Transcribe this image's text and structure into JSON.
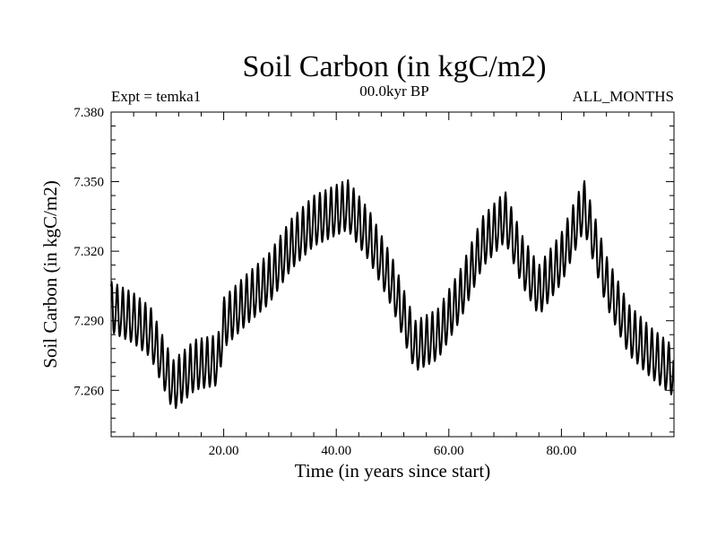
{
  "chart_data": {
    "type": "line",
    "title": "Soil Carbon (in kgC/m2)",
    "subtitle_left": "Expt = temka1",
    "subtitle_center": "00.0kyr BP",
    "subtitle_right": "ALL_MONTHS",
    "xlabel": "Time (in years since start)",
    "ylabel": "Soil Carbon (in kgC/m2)",
    "xlim": [
      0,
      100
    ],
    "ylim": [
      7.24,
      7.38
    ],
    "x_major_ticks": [
      20,
      40,
      60,
      80
    ],
    "x_tick_labels": [
      "20.00",
      "40.00",
      "60.00",
      "80.00"
    ],
    "x_minor_step": 4,
    "y_major_ticks": [
      7.26,
      7.29,
      7.32,
      7.35,
      7.38
    ],
    "y_tick_labels": [
      "7.260",
      "7.290",
      "7.320",
      "7.350",
      "7.380"
    ],
    "y_minor_step": 0.006,
    "line_color": "#000000",
    "seasonal_cycle_per_year": true,
    "trend_points": {
      "x": [
        0,
        4,
        7,
        11,
        15,
        19,
        20,
        24,
        28,
        32,
        36,
        42,
        46,
        50,
        54,
        58,
        62,
        66,
        70,
        73,
        76,
        80,
        84,
        88,
        92,
        96,
        99.5
      ],
      "y": [
        7.295,
        7.29,
        7.284,
        7.261,
        7.27,
        7.272,
        7.288,
        7.298,
        7.307,
        7.322,
        7.332,
        7.339,
        7.325,
        7.305,
        7.278,
        7.283,
        7.3,
        7.323,
        7.334,
        7.315,
        7.302,
        7.316,
        7.339,
        7.306,
        7.285,
        7.275,
        7.268
      ]
    },
    "series": [
      {
        "name": "Soil Carbon",
        "description": "monthly values with seasonal oscillation, amplitude ~0.010 kgC/m2"
      }
    ]
  }
}
